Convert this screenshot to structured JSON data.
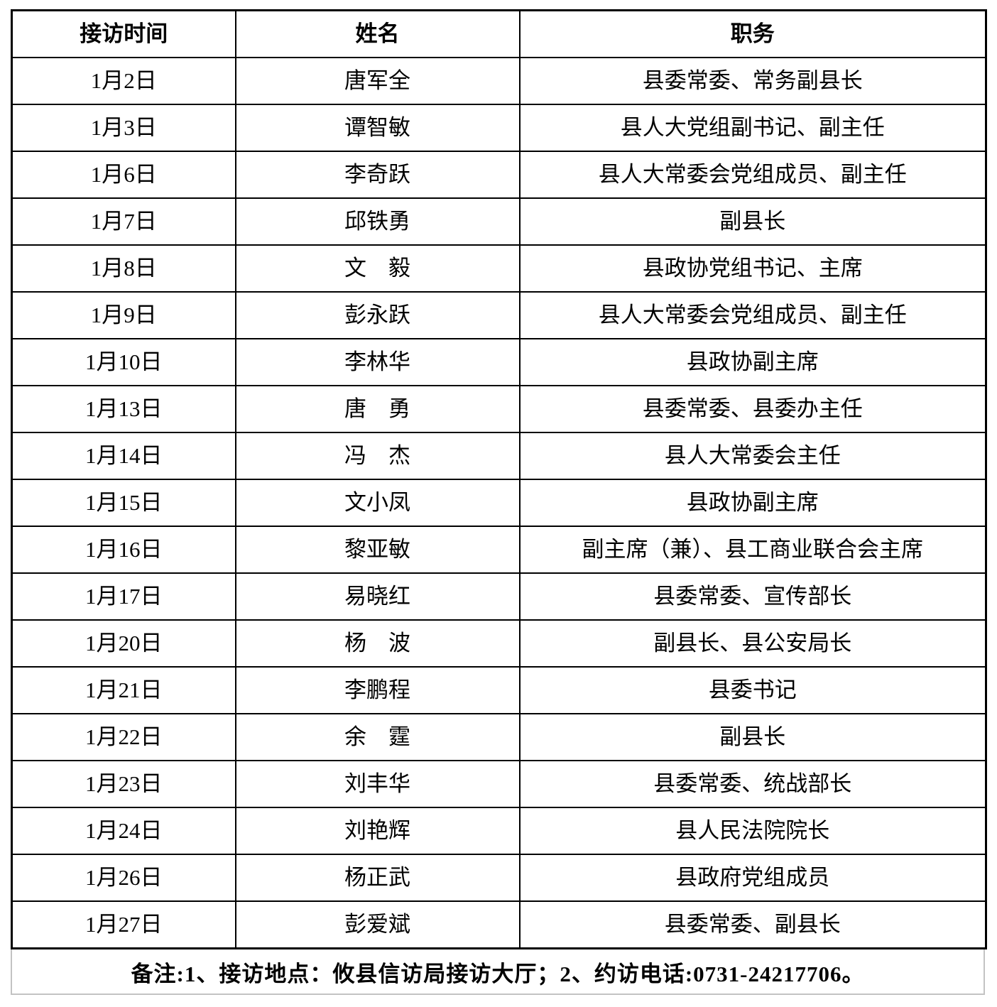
{
  "table": {
    "headers": [
      "接访时间",
      "姓名",
      "职务"
    ],
    "rows": [
      {
        "date": "1月2日",
        "name": "唐军全",
        "title": "县委常委、常务副县长"
      },
      {
        "date": "1月3日",
        "name": "谭智敏",
        "title": "县人大党组副书记、副主任"
      },
      {
        "date": "1月6日",
        "name": "李奇跃",
        "title": "县人大常委会党组成员、副主任"
      },
      {
        "date": "1月7日",
        "name": "邱铁勇",
        "title": "副县长"
      },
      {
        "date": "1月8日",
        "name": "文　毅",
        "title": "县政协党组书记、主席"
      },
      {
        "date": "1月9日",
        "name": "彭永跃",
        "title": "县人大常委会党组成员、副主任"
      },
      {
        "date": "1月10日",
        "name": "李林华",
        "title": "县政协副主席"
      },
      {
        "date": "1月13日",
        "name": "唐　勇",
        "title": "县委常委、县委办主任"
      },
      {
        "date": "1月14日",
        "name": "冯　杰",
        "title": "县人大常委会主任"
      },
      {
        "date": "1月15日",
        "name": "文小凤",
        "title": "县政协副主席"
      },
      {
        "date": "1月16日",
        "name": "黎亚敏",
        "title": "副主席（兼）、县工商业联合会主席"
      },
      {
        "date": "1月17日",
        "name": "易晓红",
        "title": "县委常委、宣传部长"
      },
      {
        "date": "1月20日",
        "name": "杨　波",
        "title": "副县长、县公安局长"
      },
      {
        "date": "1月21日",
        "name": "李鹏程",
        "title": "县委书记"
      },
      {
        "date": "1月22日",
        "name": "余　霆",
        "title": "副县长"
      },
      {
        "date": "1月23日",
        "name": "刘丰华",
        "title": "县委常委、统战部长"
      },
      {
        "date": "1月24日",
        "name": "刘艳辉",
        "title": "县人民法院院长"
      },
      {
        "date": "1月26日",
        "name": "杨正武",
        "title": "县政府党组成员"
      },
      {
        "date": "1月27日",
        "name": "彭爱斌",
        "title": "县委常委、副县长"
      }
    ],
    "footer_note": "备注:1、接访地点：攸县信访局接访大厅；2、约访电话:0731-24217706。"
  },
  "colors": {
    "border_main": "#000000",
    "border_footer": "#c3c3c3",
    "background": "#ffffff",
    "text": "#000000"
  }
}
